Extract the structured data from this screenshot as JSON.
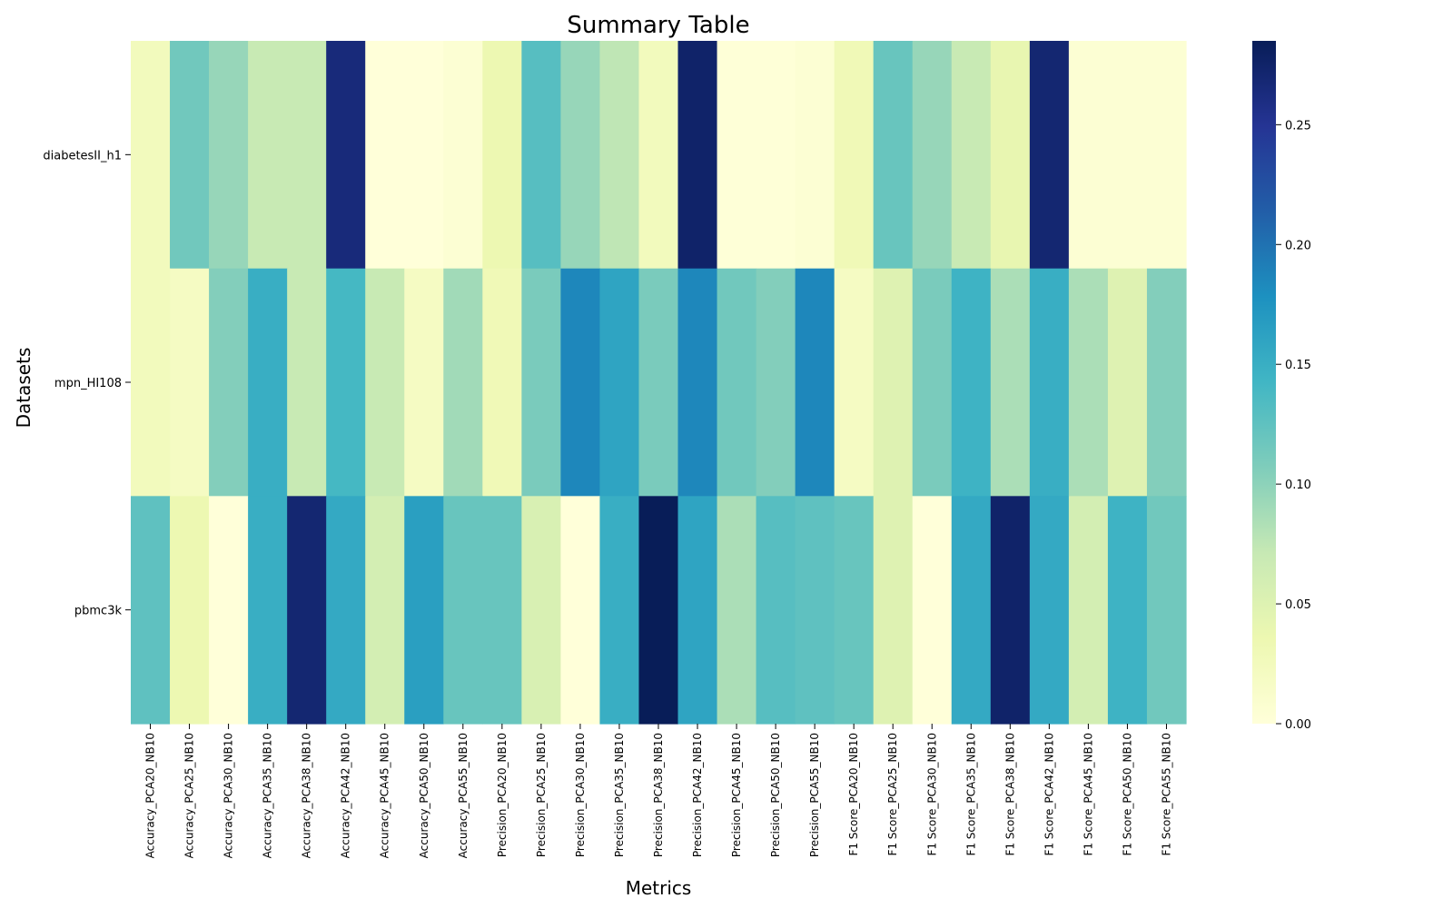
{
  "chart_data": {
    "type": "heatmap",
    "title": "Summary Table",
    "xlabel": "Metrics",
    "ylabel": "Datasets",
    "x": [
      "Accuracy_PCA20_NB10",
      "Accuracy_PCA25_NB10",
      "Accuracy_PCA30_NB10",
      "Accuracy_PCA35_NB10",
      "Accuracy_PCA38_NB10",
      "Accuracy_PCA42_NB10",
      "Accuracy_PCA45_NB10",
      "Accuracy_PCA50_NB10",
      "Accuracy_PCA55_NB10",
      "Precision_PCA20_NB10",
      "Precision_PCA25_NB10",
      "Precision_PCA30_NB10",
      "Precision_PCA35_NB10",
      "Precision_PCA38_NB10",
      "Precision_PCA42_NB10",
      "Precision_PCA45_NB10",
      "Precision_PCA50_NB10",
      "Precision_PCA55_NB10",
      "F1 Score_PCA20_NB10",
      "F1 Score_PCA25_NB10",
      "F1 Score_PCA30_NB10",
      "F1 Score_PCA35_NB10",
      "F1 Score_PCA38_NB10",
      "F1 Score_PCA42_NB10",
      "F1 Score_PCA45_NB10",
      "F1 Score_PCA50_NB10",
      "F1 Score_PCA55_NB10"
    ],
    "y": [
      "diabetesII_h1",
      "mpn_HI108",
      "pbmc3k"
    ],
    "values": [
      [
        0.025,
        0.115,
        0.095,
        0.07,
        0.07,
        0.265,
        0.0,
        0.0,
        0.005,
        0.035,
        0.13,
        0.095,
        0.075,
        0.025,
        0.275,
        0.002,
        0.002,
        0.005,
        0.03,
        0.12,
        0.095,
        0.07,
        0.04,
        0.27,
        0.005,
        0.005,
        0.005
      ],
      [
        0.025,
        0.02,
        0.105,
        0.15,
        0.07,
        0.14,
        0.07,
        0.02,
        0.09,
        0.03,
        0.11,
        0.185,
        0.16,
        0.11,
        0.185,
        0.115,
        0.105,
        0.185,
        0.02,
        0.05,
        0.11,
        0.145,
        0.085,
        0.15,
        0.085,
        0.05,
        0.105
      ],
      [
        0.125,
        0.035,
        0.0,
        0.15,
        0.27,
        0.155,
        0.06,
        0.165,
        0.12,
        0.12,
        0.055,
        0.0,
        0.15,
        0.285,
        0.16,
        0.085,
        0.13,
        0.125,
        0.12,
        0.05,
        0.0,
        0.155,
        0.275,
        0.155,
        0.06,
        0.145,
        0.115
      ]
    ],
    "colorbar": {
      "min": 0.0,
      "max": 0.285,
      "ticks": [
        0.0,
        0.05,
        0.1,
        0.15,
        0.2,
        0.25
      ],
      "tick_labels": [
        "0.00",
        "0.05",
        "0.10",
        "0.15",
        "0.20",
        "0.25"
      ],
      "colormap": "YlGnBu",
      "colormap_stops": [
        "#ffffd9",
        "#edf8b1",
        "#c7e9b4",
        "#7fcdbb",
        "#41b6c4",
        "#1d91c0",
        "#225ea8",
        "#253494",
        "#081d58"
      ]
    }
  }
}
